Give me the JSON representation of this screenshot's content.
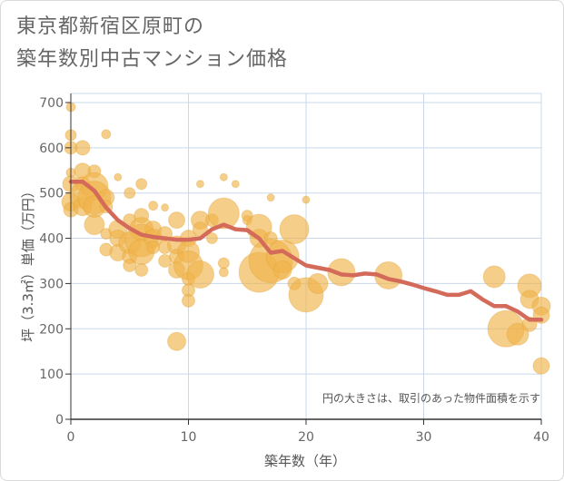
{
  "title": {
    "line1": "東京都新宿区原町の",
    "line2": "築年数別中古マンション価格"
  },
  "colors": {
    "bubble": "#f0b44c",
    "bubble_stroke": "#e0a030",
    "line": "#d46a5a",
    "grid": "#c9d8ea",
    "axis": "#333333"
  },
  "chart_data": {
    "type": "scatter",
    "xlabel": "築年数（年）",
    "ylabel": "坪（3.3㎡）単価（万円）",
    "xlim": [
      0,
      40
    ],
    "ylim": [
      0,
      720
    ],
    "x_ticks": [
      0,
      10,
      20,
      30,
      40
    ],
    "y_ticks": [
      0,
      100,
      200,
      300,
      400,
      500,
      600,
      700
    ],
    "note": "円の大きさは、取引のあった物件面積を示す",
    "points": [
      {
        "x": 0,
        "y": 690,
        "s": 5
      },
      {
        "x": 0,
        "y": 628,
        "s": 6
      },
      {
        "x": 0,
        "y": 600,
        "s": 7
      },
      {
        "x": 0,
        "y": 545,
        "s": 5
      },
      {
        "x": 0,
        "y": 520,
        "s": 9
      },
      {
        "x": 0,
        "y": 480,
        "s": 10
      },
      {
        "x": 0,
        "y": 463,
        "s": 8
      },
      {
        "x": 1,
        "y": 600,
        "s": 8
      },
      {
        "x": 1,
        "y": 548,
        "s": 9
      },
      {
        "x": 1,
        "y": 520,
        "s": 8
      },
      {
        "x": 1,
        "y": 495,
        "s": 14
      },
      {
        "x": 1,
        "y": 470,
        "s": 10
      },
      {
        "x": 2,
        "y": 548,
        "s": 7
      },
      {
        "x": 2,
        "y": 515,
        "s": 15
      },
      {
        "x": 2,
        "y": 490,
        "s": 18
      },
      {
        "x": 2,
        "y": 470,
        "s": 12
      },
      {
        "x": 2,
        "y": 430,
        "s": 11
      },
      {
        "x": 3,
        "y": 630,
        "s": 5
      },
      {
        "x": 3,
        "y": 490,
        "s": 9
      },
      {
        "x": 3,
        "y": 470,
        "s": 7
      },
      {
        "x": 3,
        "y": 410,
        "s": 6
      },
      {
        "x": 3,
        "y": 375,
        "s": 7
      },
      {
        "x": 4,
        "y": 535,
        "s": 4
      },
      {
        "x": 4,
        "y": 420,
        "s": 10
      },
      {
        "x": 4,
        "y": 400,
        "s": 9
      },
      {
        "x": 4,
        "y": 368,
        "s": 9
      },
      {
        "x": 5,
        "y": 500,
        "s": 6
      },
      {
        "x": 5,
        "y": 440,
        "s": 7
      },
      {
        "x": 5,
        "y": 390,
        "s": 12
      },
      {
        "x": 5,
        "y": 360,
        "s": 8
      },
      {
        "x": 5,
        "y": 340,
        "s": 7
      },
      {
        "x": 6,
        "y": 520,
        "s": 6
      },
      {
        "x": 6,
        "y": 450,
        "s": 8
      },
      {
        "x": 6,
        "y": 420,
        "s": 13
      },
      {
        "x": 6,
        "y": 395,
        "s": 18
      },
      {
        "x": 6,
        "y": 370,
        "s": 14
      },
      {
        "x": 6,
        "y": 330,
        "s": 7
      },
      {
        "x": 7,
        "y": 472,
        "s": 5
      },
      {
        "x": 7,
        "y": 420,
        "s": 9
      },
      {
        "x": 7,
        "y": 400,
        "s": 10
      },
      {
        "x": 7,
        "y": 380,
        "s": 7
      },
      {
        "x": 8,
        "y": 468,
        "s": 4
      },
      {
        "x": 8,
        "y": 410,
        "s": 8
      },
      {
        "x": 8,
        "y": 380,
        "s": 7
      },
      {
        "x": 8,
        "y": 350,
        "s": 7
      },
      {
        "x": 9,
        "y": 440,
        "s": 9
      },
      {
        "x": 9,
        "y": 385,
        "s": 10
      },
      {
        "x": 9,
        "y": 360,
        "s": 8
      },
      {
        "x": 9,
        "y": 330,
        "s": 9
      },
      {
        "x": 9,
        "y": 172,
        "s": 10
      },
      {
        "x": 10,
        "y": 400,
        "s": 9
      },
      {
        "x": 10,
        "y": 370,
        "s": 12
      },
      {
        "x": 10,
        "y": 340,
        "s": 16
      },
      {
        "x": 10,
        "y": 310,
        "s": 7
      },
      {
        "x": 10,
        "y": 285,
        "s": 7
      },
      {
        "x": 10,
        "y": 262,
        "s": 7
      },
      {
        "x": 11,
        "y": 520,
        "s": 4
      },
      {
        "x": 11,
        "y": 440,
        "s": 10
      },
      {
        "x": 11,
        "y": 420,
        "s": 8
      },
      {
        "x": 11,
        "y": 320,
        "s": 15
      },
      {
        "x": 12,
        "y": 440,
        "s": 7
      },
      {
        "x": 12,
        "y": 400,
        "s": 6
      },
      {
        "x": 13,
        "y": 535,
        "s": 4
      },
      {
        "x": 13,
        "y": 455,
        "s": 17
      },
      {
        "x": 13,
        "y": 345,
        "s": 6
      },
      {
        "x": 13,
        "y": 325,
        "s": 5
      },
      {
        "x": 14,
        "y": 520,
        "s": 4
      },
      {
        "x": 15,
        "y": 450,
        "s": 6
      },
      {
        "x": 15,
        "y": 440,
        "s": 5
      },
      {
        "x": 16,
        "y": 425,
        "s": 14
      },
      {
        "x": 16,
        "y": 400,
        "s": 10
      },
      {
        "x": 16,
        "y": 325,
        "s": 22
      },
      {
        "x": 17,
        "y": 490,
        "s": 4
      },
      {
        "x": 17,
        "y": 400,
        "s": 7
      },
      {
        "x": 17,
        "y": 350,
        "s": 24
      },
      {
        "x": 18,
        "y": 360,
        "s": 18
      },
      {
        "x": 18,
        "y": 330,
        "s": 10
      },
      {
        "x": 19,
        "y": 420,
        "s": 16
      },
      {
        "x": 19,
        "y": 300,
        "s": 7
      },
      {
        "x": 20,
        "y": 485,
        "s": 4
      },
      {
        "x": 20,
        "y": 275,
        "s": 19
      },
      {
        "x": 21,
        "y": 300,
        "s": 11
      },
      {
        "x": 23,
        "y": 325,
        "s": 15
      },
      {
        "x": 27,
        "y": 318,
        "s": 15
      },
      {
        "x": 36,
        "y": 315,
        "s": 12
      },
      {
        "x": 37,
        "y": 200,
        "s": 20
      },
      {
        "x": 38,
        "y": 188,
        "s": 12
      },
      {
        "x": 39,
        "y": 295,
        "s": 13
      },
      {
        "x": 39,
        "y": 265,
        "s": 10
      },
      {
        "x": 39,
        "y": 210,
        "s": 8
      },
      {
        "x": 40,
        "y": 250,
        "s": 10
      },
      {
        "x": 40,
        "y": 230,
        "s": 9
      },
      {
        "x": 40,
        "y": 118,
        "s": 9
      }
    ],
    "series": [
      {
        "x": [
          0,
          1,
          2,
          3,
          4,
          5,
          6,
          7,
          8,
          9,
          10,
          11,
          12,
          13,
          14,
          15,
          16,
          17,
          18,
          19,
          20,
          21,
          22,
          23,
          24,
          25,
          26,
          27,
          28,
          29,
          30,
          31,
          32,
          33,
          34,
          35,
          36,
          37,
          38,
          39,
          40
        ],
        "y": [
          525,
          525,
          505,
          468,
          440,
          422,
          408,
          403,
          400,
          397,
          397,
          400,
          420,
          430,
          420,
          418,
          400,
          368,
          372,
          356,
          340,
          335,
          330,
          320,
          318,
          322,
          320,
          310,
          305,
          298,
          290,
          283,
          275,
          275,
          283,
          265,
          250,
          250,
          238,
          220,
          220
        ]
      }
    ]
  }
}
